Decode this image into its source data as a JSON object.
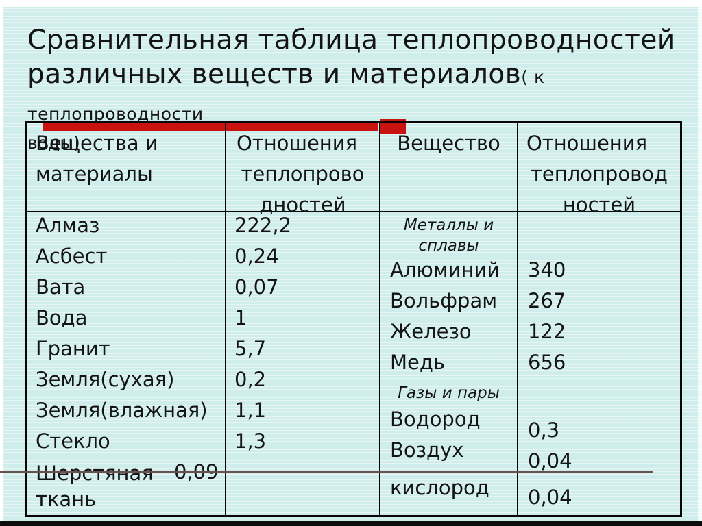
{
  "title": {
    "main_line1": "Сравнительная таблица теплопроводностей",
    "main_line2": "различных веществ и материалов",
    "suffix_inline": "( к теплопроводности",
    "suffix_line3": "воды)"
  },
  "colors": {
    "accent_red": "#c81310",
    "background_cyan": "#cfeeeb",
    "border_black": "#060606"
  },
  "table": {
    "headers": {
      "col1": "Вещества и материалы",
      "col2": {
        "l1": "Отношения",
        "l2": "теплопрово",
        "l3": "дностей"
      },
      "col3": "Вещество",
      "col4": {
        "l1": "Отношения",
        "l2": "теплопровод",
        "l3": "ностей"
      }
    },
    "left_rows": [
      {
        "type": "norm",
        "label": "Алмаз",
        "value": "222,2"
      },
      {
        "type": "norm",
        "label": "Асбест",
        "value": "0,24"
      },
      {
        "type": "norm",
        "label": "Вата",
        "value": "0,07"
      },
      {
        "type": "norm",
        "label": "Вода",
        "value": "1"
      },
      {
        "type": "norm",
        "label": "Гранит",
        "value": "5,7"
      },
      {
        "type": "norm",
        "label": "Земля(сухая)",
        "value": "0,2"
      },
      {
        "type": "norm",
        "label": "Земля(влажная)",
        "value": "1,1"
      },
      {
        "type": "norm",
        "label": "Стекло",
        "value": "1,3"
      },
      {
        "type": "tall",
        "label": "Шерстяная ткань",
        "value": "0,09"
      }
    ],
    "right_rows": [
      {
        "type": "sub2",
        "label": "Металлы и сплавы",
        "value": ""
      },
      {
        "type": "row",
        "label": "Алюминий",
        "value": "340"
      },
      {
        "type": "row",
        "label": "Вольфрам",
        "value": "267"
      },
      {
        "type": "row",
        "label": "Железо",
        "value": "122"
      },
      {
        "type": "row",
        "label": "Медь",
        "value": "656"
      },
      {
        "type": "sub1",
        "label": "Газы и пары",
        "value": ""
      },
      {
        "type": "rowlow",
        "label": "Водород",
        "value": "0,3"
      },
      {
        "type": "rowlow",
        "label": "Воздух",
        "value": "0,04"
      },
      {
        "type": "rowlast",
        "label": "кислород",
        "value": "0,04"
      }
    ]
  }
}
